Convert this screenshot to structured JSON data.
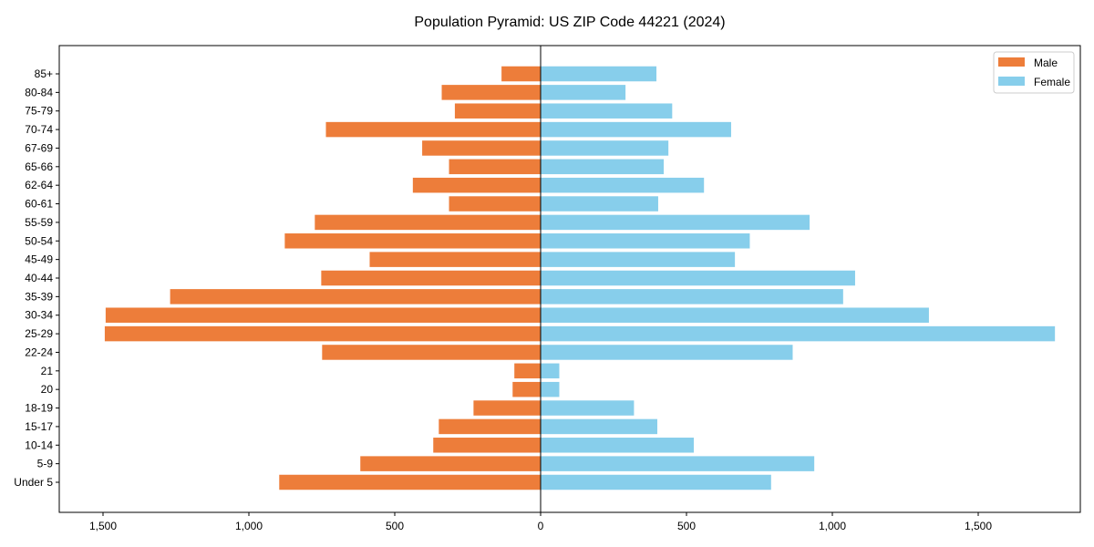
{
  "chart_data": {
    "type": "bar",
    "orientation": "horizontal-pyramid",
    "title": "Population Pyramid: US ZIP Code 44221 (2024)",
    "xlabel": "",
    "ylabel": "",
    "xlim": [
      -1650,
      1850
    ],
    "xticks": [
      -1500,
      -1000,
      -500,
      0,
      500,
      1000,
      1500
    ],
    "xtick_labels": [
      "1,500",
      "1,000",
      "500",
      "0",
      "500",
      "1,000",
      "1,500"
    ],
    "legend_position": "top-right",
    "categories": [
      "Under 5",
      "5-9",
      "10-14",
      "15-17",
      "18-19",
      "20",
      "21",
      "22-24",
      "25-29",
      "30-34",
      "35-39",
      "40-44",
      "45-49",
      "50-54",
      "55-59",
      "60-61",
      "62-64",
      "65-66",
      "67-69",
      "70-74",
      "75-79",
      "80-84",
      "85+"
    ],
    "series": [
      {
        "name": "Male",
        "color": "#ED7D3A",
        "values": [
          896,
          618,
          368,
          349,
          230,
          96,
          90,
          749,
          1494,
          1491,
          1270,
          752,
          586,
          877,
          774,
          314,
          438,
          314,
          406,
          736,
          294,
          339,
          134
        ]
      },
      {
        "name": "Female",
        "color": "#87CEEB",
        "values": [
          790,
          938,
          525,
          400,
          320,
          64,
          64,
          864,
          1763,
          1331,
          1037,
          1078,
          666,
          717,
          922,
          403,
          560,
          422,
          438,
          653,
          451,
          291,
          397
        ]
      }
    ]
  }
}
